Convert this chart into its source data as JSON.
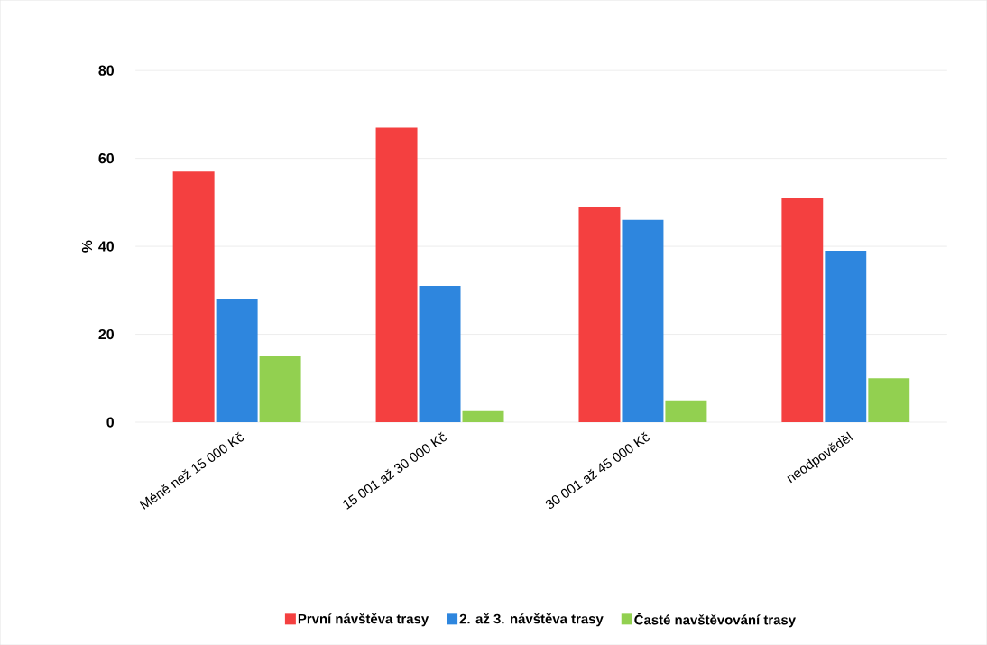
{
  "chart_data": {
    "type": "bar",
    "ylabel": "%",
    "categories": [
      "Méně než 15 000 Kč",
      "15 001 až 30 000 Kč",
      "30 001 až 45 000 Kč",
      "neodpověděl"
    ],
    "series": [
      {
        "name": "První návštěva trasy",
        "color": "#f44040",
        "values": [
          57,
          67,
          49,
          51
        ]
      },
      {
        "name": "2. až 3. návštěva trasy",
        "color": "#2e86de",
        "values": [
          28,
          31,
          46,
          39
        ]
      },
      {
        "name": "Časté navštěvování trasy",
        "color": "#92d050",
        "values": [
          15,
          2.5,
          5,
          10
        ]
      }
    ],
    "ylim": [
      0,
      80
    ],
    "yticks": [
      0,
      20,
      40,
      60,
      80
    ],
    "grid": "y",
    "legend": "bottom"
  }
}
